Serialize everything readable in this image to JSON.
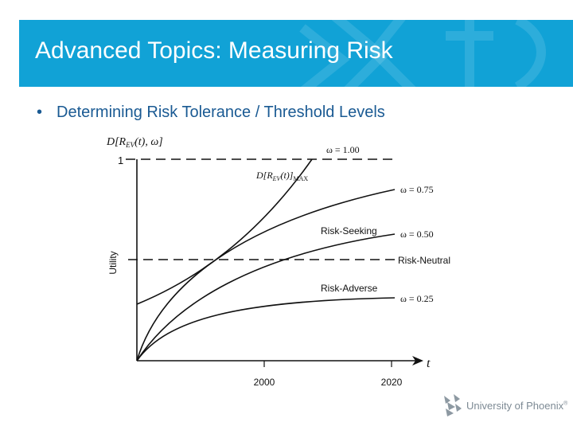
{
  "slide": {
    "title": "Advanced Topics: Measuring Risk",
    "bullet": "Determining Risk Tolerance / Threshold Levels"
  },
  "diagram": {
    "y_axis_title": {
      "prefix": "D[R",
      "sub": "EV",
      "suffix": "(t),  ω]"
    },
    "y_label": "Utility",
    "y_tick": "1",
    "x_axis_var": "t",
    "x_ticks": [
      "2000",
      "2020"
    ],
    "max_label": {
      "prefix": "D[R",
      "sub": "EV",
      "mid": "(t)]",
      "sub2": "MAX"
    },
    "curves": [
      {
        "label": "ω = 1.00"
      },
      {
        "label": "ω = 0.75"
      },
      {
        "label": "ω = 0.50"
      },
      {
        "label": "ω = 0.25"
      }
    ],
    "region_labels": {
      "risk_seeking": "Risk-Seeking",
      "risk_neutral": "Risk-Neutral",
      "risk_adverse": "Risk-Adverse"
    }
  },
  "logo": {
    "text": "University of Phoenix",
    "mark": "®"
  },
  "colors": {
    "header": "#11a2d6",
    "bullet_text": "#1a5a93",
    "line": "#111111"
  }
}
